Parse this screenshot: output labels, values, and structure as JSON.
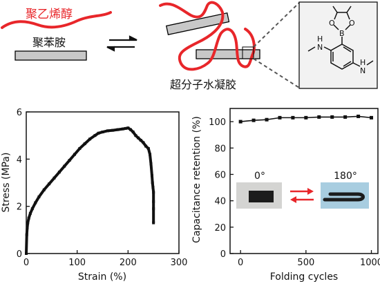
{
  "schematic": {
    "label_pva": "聚乙烯醇",
    "label_pani": "聚苯胺",
    "label_hydrogel": "超分子水凝胶",
    "molecule": {
      "atom_B": "B",
      "atom_O1": "O",
      "atom_O2": "O",
      "nh_left": "H",
      "n_left": "N",
      "nh_right": "H",
      "n_right": "N"
    },
    "colors": {
      "pva_chain": "#e8262a",
      "rod_fill": "#c8c8c8",
      "rod_edge": "#000000",
      "arrow": "#e8262a",
      "inset_bg": "#f2f2f2"
    }
  },
  "chart_data": [
    {
      "type": "scatter",
      "xlabel": "Strain (%)",
      "ylabel": "Stress (MPa)",
      "xlim": [
        0,
        300
      ],
      "ylim": [
        0,
        6
      ],
      "x_ticks": [
        "0",
        "100",
        "200",
        "300"
      ],
      "y_ticks": [
        "0",
        "2",
        "4",
        "6"
      ],
      "series": [
        {
          "x": [
            0,
            1,
            2,
            3,
            5,
            8,
            12,
            18,
            25,
            35,
            45,
            55,
            65,
            75,
            85,
            95,
            105,
            115,
            125,
            135,
            142,
            150,
            160,
            170,
            180,
            190,
            195,
            200,
            205,
            210,
            215,
            220,
            225,
            230,
            235,
            240,
            243,
            245,
            247,
            248,
            249,
            250,
            250,
            250,
            250
          ],
          "y": [
            0.0,
            0.8,
            1.1,
            1.3,
            1.5,
            1.7,
            1.9,
            2.15,
            2.4,
            2.7,
            2.95,
            3.2,
            3.45,
            3.7,
            3.95,
            4.2,
            4.45,
            4.65,
            4.85,
            5.0,
            5.1,
            5.15,
            5.2,
            5.22,
            5.25,
            5.28,
            5.3,
            5.32,
            5.25,
            5.15,
            5.0,
            4.9,
            4.8,
            4.7,
            4.55,
            4.45,
            4.2,
            3.8,
            3.3,
            3.0,
            2.8,
            2.6,
            2.2,
            1.9,
            1.3
          ]
        }
      ]
    },
    {
      "type": "line",
      "xlabel": "Folding cycles",
      "ylabel": "Capacitance retention (%)",
      "xlim": [
        -80,
        1050
      ],
      "ylim": [
        0,
        110
      ],
      "x_ticks": [
        "0",
        "500",
        "1000"
      ],
      "y_ticks": [
        "0",
        "20",
        "40",
        "60",
        "80",
        "100"
      ],
      "series": [
        {
          "x": [
            0,
            100,
            200,
            300,
            400,
            500,
            600,
            700,
            800,
            900,
            1000
          ],
          "y": [
            100,
            101,
            101.5,
            103,
            103,
            103,
            103.5,
            103.5,
            103.5,
            104,
            103
          ]
        }
      ],
      "annotations": {
        "angle_0": "0°",
        "angle_180": "180°"
      }
    }
  ]
}
